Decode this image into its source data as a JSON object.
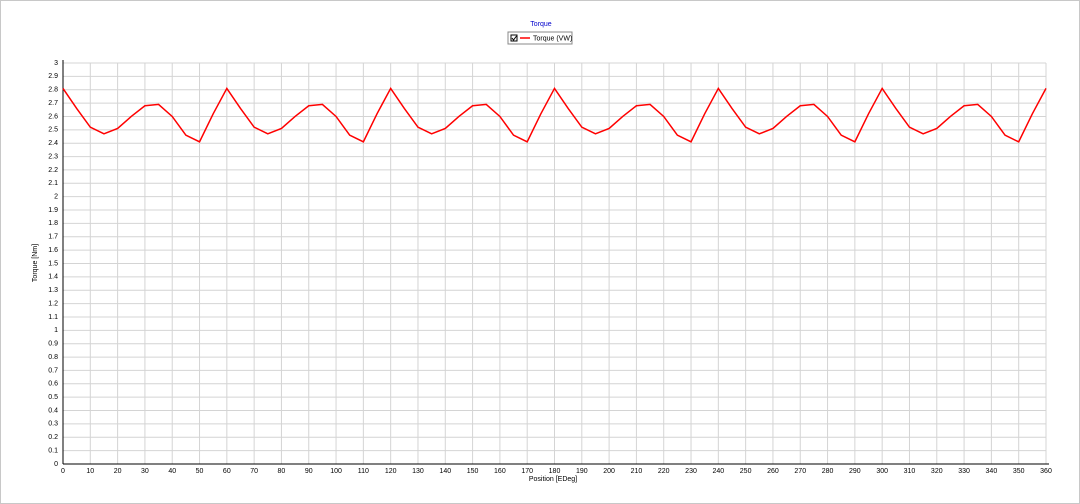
{
  "chart_data": {
    "type": "line",
    "title": "Torque",
    "x_label": "Position [EDeg]",
    "y_label": "Torque [Nm]",
    "x": [
      0,
      5,
      10,
      15,
      20,
      25,
      30,
      35,
      40,
      45,
      50,
      55,
      60,
      65,
      70,
      75,
      80,
      85,
      90,
      95,
      100,
      105,
      110,
      115,
      120,
      125,
      130,
      135,
      140,
      145,
      150,
      155,
      160,
      165,
      170,
      175,
      180,
      185,
      190,
      195,
      200,
      205,
      210,
      215,
      220,
      225,
      230,
      235,
      240,
      245,
      250,
      255,
      260,
      265,
      270,
      275,
      280,
      285,
      290,
      295,
      300,
      305,
      310,
      315,
      320,
      325,
      330,
      335,
      340,
      345,
      350,
      355,
      360
    ],
    "series": [
      {
        "name": "Torque (VW)",
        "color": "#ff0000",
        "values": [
          2.81,
          2.66,
          2.52,
          2.47,
          2.51,
          2.6,
          2.68,
          2.69,
          2.6,
          2.46,
          2.41,
          2.62,
          2.81,
          2.66,
          2.52,
          2.47,
          2.51,
          2.6,
          2.68,
          2.69,
          2.6,
          2.46,
          2.41,
          2.62,
          2.81,
          2.66,
          2.52,
          2.47,
          2.51,
          2.6,
          2.68,
          2.69,
          2.6,
          2.46,
          2.41,
          2.62,
          2.81,
          2.66,
          2.52,
          2.47,
          2.51,
          2.6,
          2.68,
          2.69,
          2.6,
          2.46,
          2.41,
          2.62,
          2.81,
          2.66,
          2.52,
          2.47,
          2.51,
          2.6,
          2.68,
          2.69,
          2.6,
          2.46,
          2.41,
          2.62,
          2.81,
          2.66,
          2.52,
          2.47,
          2.51,
          2.6,
          2.68,
          2.69,
          2.6,
          2.46,
          2.41,
          2.62,
          2.81
        ]
      }
    ],
    "xlim": [
      0,
      360
    ],
    "xticks": [
      0,
      10,
      20,
      30,
      40,
      50,
      60,
      70,
      80,
      90,
      100,
      110,
      120,
      130,
      140,
      150,
      160,
      170,
      180,
      190,
      200,
      210,
      220,
      230,
      240,
      250,
      260,
      270,
      280,
      290,
      300,
      310,
      320,
      330,
      340,
      350,
      360
    ],
    "ylim": [
      0,
      3
    ],
    "yticks": [
      0,
      0.1,
      0.2,
      0.3,
      0.4,
      0.5,
      0.6,
      0.7,
      0.8,
      0.9,
      1,
      1.1,
      1.2,
      1.3,
      1.4,
      1.5,
      1.6,
      1.7,
      1.8,
      1.9,
      2,
      2.1,
      2.2,
      2.3,
      2.4,
      2.5,
      2.6,
      2.7,
      2.8,
      2.9,
      3
    ],
    "grid": true
  }
}
